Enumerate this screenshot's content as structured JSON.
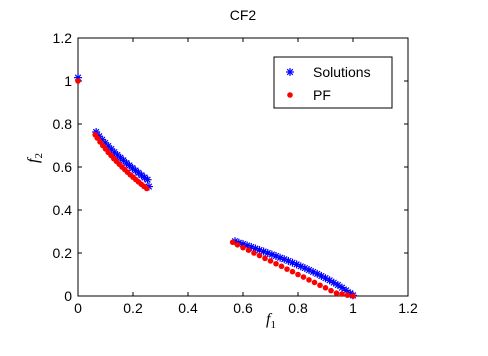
{
  "chart_data": {
    "type": "scatter",
    "title": "CF2",
    "xlabel": {
      "main": "f",
      "sub": "1"
    },
    "ylabel": {
      "main": "f",
      "sub": "2"
    },
    "xlim": [
      0,
      1.2
    ],
    "ylim": [
      0,
      1.2
    ],
    "xticks": [
      "0",
      "0.2",
      "0.4",
      "0.6",
      "0.8",
      "1",
      "1.2"
    ],
    "yticks": [
      "0",
      "0.2",
      "0.4",
      "0.6",
      "0.8",
      "1",
      "1.2"
    ],
    "xtick_values": [
      0,
      0.2,
      0.4,
      0.6,
      0.8,
      1.0,
      1.2
    ],
    "ytick_values": [
      0,
      0.2,
      0.4,
      0.6,
      0.8,
      1.0,
      1.2
    ],
    "grid": false,
    "legend_position": "top-right",
    "series": [
      {
        "name": "Solutions",
        "marker": "asterisk",
        "color": "#0000ff",
        "points": [
          [
            0.0,
            1.0156
          ],
          [
            0.066,
            0.763
          ],
          [
            0.077,
            0.743
          ],
          [
            0.088,
            0.727
          ],
          [
            0.099,
            0.712
          ],
          [
            0.11,
            0.697
          ],
          [
            0.121,
            0.683
          ],
          [
            0.132,
            0.669
          ],
          [
            0.143,
            0.656
          ],
          [
            0.154,
            0.643
          ],
          [
            0.165,
            0.631
          ],
          [
            0.176,
            0.618
          ],
          [
            0.187,
            0.607
          ],
          [
            0.198,
            0.595
          ],
          [
            0.209,
            0.584
          ],
          [
            0.22,
            0.573
          ],
          [
            0.231,
            0.562
          ],
          [
            0.242,
            0.551
          ],
          [
            0.253,
            0.541
          ],
          [
            0.258,
            0.509
          ],
          [
            0.571,
            0.255
          ],
          [
            0.585,
            0.248
          ],
          [
            0.6,
            0.242
          ],
          [
            0.615,
            0.235
          ],
          [
            0.63,
            0.228
          ],
          [
            0.645,
            0.221
          ],
          [
            0.66,
            0.214
          ],
          [
            0.675,
            0.207
          ],
          [
            0.69,
            0.2
          ],
          [
            0.705,
            0.193
          ],
          [
            0.72,
            0.186
          ],
          [
            0.735,
            0.178
          ],
          [
            0.75,
            0.171
          ],
          [
            0.765,
            0.163
          ],
          [
            0.78,
            0.155
          ],
          [
            0.795,
            0.147
          ],
          [
            0.81,
            0.138
          ],
          [
            0.825,
            0.13
          ],
          [
            0.84,
            0.121
          ],
          [
            0.855,
            0.112
          ],
          [
            0.87,
            0.103
          ],
          [
            0.885,
            0.093
          ],
          [
            0.9,
            0.083
          ],
          [
            0.915,
            0.073
          ],
          [
            0.93,
            0.062
          ],
          [
            0.945,
            0.051
          ],
          [
            0.96,
            0.039
          ],
          [
            0.975,
            0.026
          ],
          [
            0.99,
            0.013
          ],
          [
            1.0,
            0.003
          ]
        ]
      },
      {
        "name": "PF",
        "marker": "dot",
        "color": "#ff0000",
        "points": [
          [
            0.0,
            1.0
          ],
          [
            0.0625,
            0.75
          ],
          [
            0.07,
            0.735
          ],
          [
            0.08,
            0.717
          ],
          [
            0.09,
            0.7
          ],
          [
            0.1,
            0.684
          ],
          [
            0.11,
            0.668
          ],
          [
            0.12,
            0.654
          ],
          [
            0.13,
            0.639
          ],
          [
            0.14,
            0.626
          ],
          [
            0.15,
            0.613
          ],
          [
            0.16,
            0.6
          ],
          [
            0.17,
            0.588
          ],
          [
            0.18,
            0.576
          ],
          [
            0.19,
            0.564
          ],
          [
            0.2,
            0.553
          ],
          [
            0.21,
            0.542
          ],
          [
            0.22,
            0.531
          ],
          [
            0.23,
            0.52
          ],
          [
            0.24,
            0.51
          ],
          [
            0.25,
            0.5
          ],
          [
            0.5625,
            0.25
          ],
          [
            0.58,
            0.238
          ],
          [
            0.6,
            0.225
          ],
          [
            0.62,
            0.213
          ],
          [
            0.64,
            0.2
          ],
          [
            0.66,
            0.188
          ],
          [
            0.68,
            0.175
          ],
          [
            0.7,
            0.163
          ],
          [
            0.72,
            0.15
          ],
          [
            0.74,
            0.138
          ],
          [
            0.76,
            0.125
          ],
          [
            0.78,
            0.113
          ],
          [
            0.8,
            0.1
          ],
          [
            0.82,
            0.088
          ],
          [
            0.84,
            0.075
          ],
          [
            0.86,
            0.063
          ],
          [
            0.88,
            0.05
          ],
          [
            0.9,
            0.038
          ],
          [
            0.92,
            0.025
          ],
          [
            0.94,
            0.013
          ],
          [
            0.96,
            0.009
          ],
          [
            0.98,
            0.004
          ],
          [
            1.0,
            0.0
          ]
        ]
      }
    ]
  }
}
